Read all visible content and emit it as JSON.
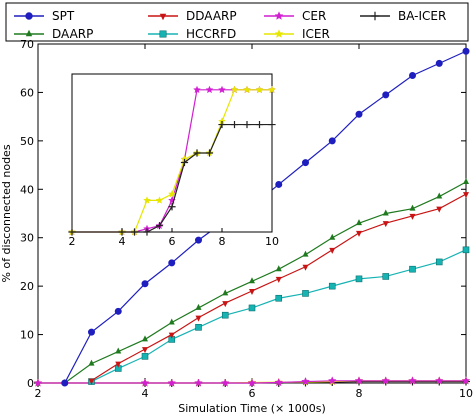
{
  "chart_data": {
    "type": "line",
    "xlabel": "Simulation Time (× 1000s)",
    "ylabel": "% of disconnected nodes",
    "xlim": [
      2,
      10
    ],
    "ylim": [
      0,
      70
    ],
    "xticks": [
      2,
      4,
      6,
      8,
      10
    ],
    "yticks": [
      0,
      10,
      20,
      30,
      40,
      50,
      60,
      70
    ],
    "grid": false,
    "legend_position": "top",
    "series": [
      {
        "name": "SPT",
        "color": "#1f1fbf",
        "marker": "circle",
        "x": [
          2.5,
          3.0,
          3.5,
          4.0,
          4.5,
          5.0,
          5.5,
          6.0,
          6.5,
          7.0,
          7.5,
          8.0,
          8.5,
          9.0,
          9.5,
          10.0
        ],
        "y": [
          0,
          10.5,
          14.8,
          20.5,
          24.8,
          29.5,
          33.5,
          36.5,
          41,
          45.5,
          50,
          55.5,
          59.5,
          63.5,
          66,
          68.5
        ]
      },
      {
        "name": "DAARP",
        "color": "#1f7a1f",
        "marker": "triangle-up",
        "x": [
          2.5,
          3.0,
          3.5,
          4.0,
          4.5,
          5.0,
          5.5,
          6.0,
          6.5,
          7.0,
          7.5,
          8.0,
          8.5,
          9.0,
          9.5,
          10.0
        ],
        "y": [
          0,
          4,
          6.5,
          9,
          12.5,
          15.5,
          18.5,
          21,
          23.5,
          26.5,
          30,
          33,
          35,
          36,
          38.5,
          41.5
        ]
      },
      {
        "name": "DDAARP",
        "color": "#c81414",
        "marker": "triangle-down",
        "x": [
          3.0,
          3.5,
          4.0,
          4.5,
          5.0,
          5.5,
          6.0,
          6.5,
          7.0,
          7.5,
          8.0,
          8.5,
          9.0,
          9.5,
          10.0
        ],
        "y": [
          0.5,
          4,
          7,
          10,
          13.5,
          16.5,
          19,
          21.5,
          24,
          27.5,
          31,
          33,
          34.5,
          36,
          39
        ]
      },
      {
        "name": "HCCRFD",
        "color": "#17b3b3",
        "marker": "square",
        "x": [
          3.0,
          3.5,
          4.0,
          4.5,
          5.0,
          5.5,
          6.0,
          6.5,
          7.0,
          7.5,
          8.0,
          8.5,
          9.0,
          9.5,
          10.0
        ],
        "y": [
          0.3,
          3,
          5.5,
          9,
          11.5,
          14,
          15.5,
          17.5,
          18.5,
          20,
          21.5,
          22,
          23.5,
          25,
          27.5
        ]
      },
      {
        "name": "CER",
        "color": "#d11fd1",
        "marker": "star",
        "x": [
          2.0,
          4.0,
          4.5,
          5.0,
          5.5,
          6.0,
          6.5,
          7.0,
          7.5,
          8.0,
          8.5,
          9.0,
          9.5,
          10.0
        ],
        "y": [
          0,
          0,
          0,
          0,
          0,
          0,
          0.1,
          0.3,
          0.45,
          0.45,
          0.45,
          0.45,
          0.45,
          0.45
        ]
      },
      {
        "name": "ICER",
        "color": "#e6e600",
        "marker": "star",
        "x": [
          2.0,
          4.0,
          4.5,
          5.0,
          5.5,
          6.0,
          6.5,
          7.0,
          7.5,
          8.0,
          8.5,
          9.0,
          9.5,
          10.0
        ],
        "y": [
          0,
          0,
          0,
          0,
          0,
          0.1,
          0.15,
          0.2,
          0.3,
          0.45,
          0.45,
          0.45,
          0.45,
          0.45
        ]
      },
      {
        "name": "BA-ICER",
        "color": "#222222",
        "marker": "plus",
        "x": [
          2.0,
          4.0,
          4.5,
          5.0,
          5.5,
          6.0,
          6.5,
          7.0,
          7.5,
          8.0,
          8.5,
          9.0,
          9.5,
          10.0
        ],
        "y": [
          0,
          0,
          0,
          0,
          0,
          0,
          0,
          0.1,
          0.2,
          0.3,
          0.3,
          0.3,
          0.3,
          0.3
        ]
      }
    ],
    "inset": {
      "xlim": [
        2,
        10
      ],
      "ylim": [
        0,
        0.5
      ],
      "xticks": [
        2,
        4,
        6,
        8,
        10
      ],
      "series": [
        {
          "name": "CER",
          "color": "#d11fd1",
          "marker": "star",
          "x": [
            2.0,
            4.0,
            4.5,
            5.0,
            5.5,
            6.0,
            6.5,
            7.0,
            7.5,
            8.0,
            8.5,
            9.0,
            9.5,
            10.0
          ],
          "y": [
            0,
            0,
            0,
            0.01,
            0.02,
            0.1,
            0.23,
            0.45,
            0.45,
            0.45,
            0.45,
            0.45,
            0.45,
            0.45
          ]
        },
        {
          "name": "ICER",
          "color": "#e6e600",
          "marker": "star",
          "x": [
            2.0,
            4.0,
            4.5,
            5.0,
            5.5,
            6.0,
            6.5,
            7.0,
            7.5,
            8.0,
            8.5,
            9.0,
            9.5,
            10.0
          ],
          "y": [
            0,
            0,
            0,
            0.1,
            0.1,
            0.12,
            0.23,
            0.25,
            0.25,
            0.35,
            0.45,
            0.45,
            0.45,
            0.45
          ]
        },
        {
          "name": "BA-ICER",
          "color": "#222222",
          "marker": "plus",
          "x": [
            2.0,
            4.0,
            4.5,
            5.0,
            5.5,
            6.0,
            6.5,
            7.0,
            7.5,
            8.0,
            8.5,
            9.0,
            9.5,
            10.0
          ],
          "y": [
            0,
            0,
            0,
            0,
            0.02,
            0.08,
            0.22,
            0.25,
            0.25,
            0.34,
            0.34,
            0.34,
            0.34,
            0.34
          ]
        }
      ]
    }
  }
}
